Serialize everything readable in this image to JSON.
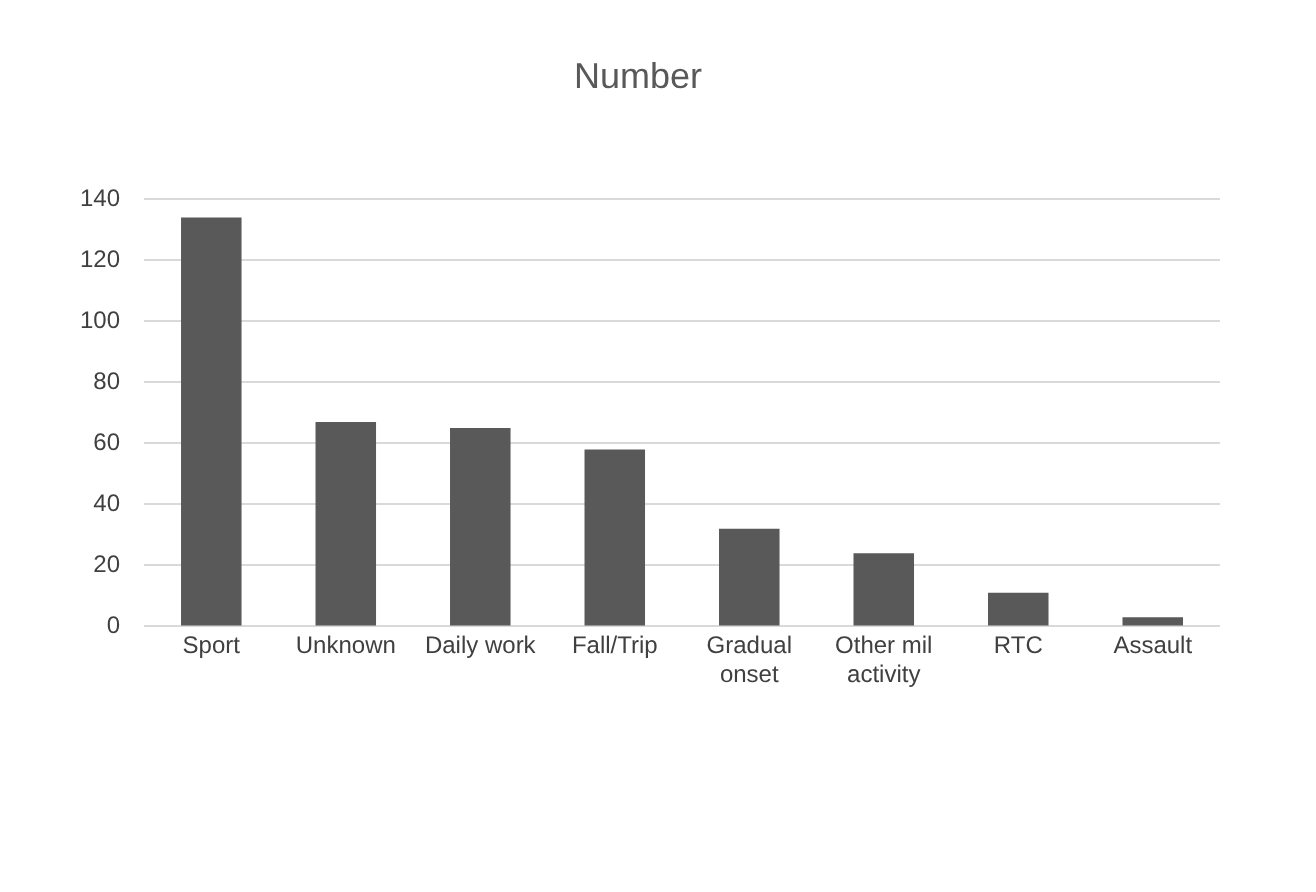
{
  "chart_data": {
    "type": "bar",
    "title": "Number",
    "categories": [
      "Sport",
      "Unknown",
      "Daily work",
      "Fall/Trip",
      "Gradual onset",
      "Other mil activity",
      "RTC",
      "Assault"
    ],
    "values": [
      134,
      67,
      65,
      58,
      32,
      24,
      11,
      3
    ],
    "color": "#595959",
    "ylim": [
      0,
      140
    ],
    "yticks": [
      0,
      20,
      40,
      60,
      80,
      100,
      120,
      140
    ],
    "grid": "y"
  }
}
